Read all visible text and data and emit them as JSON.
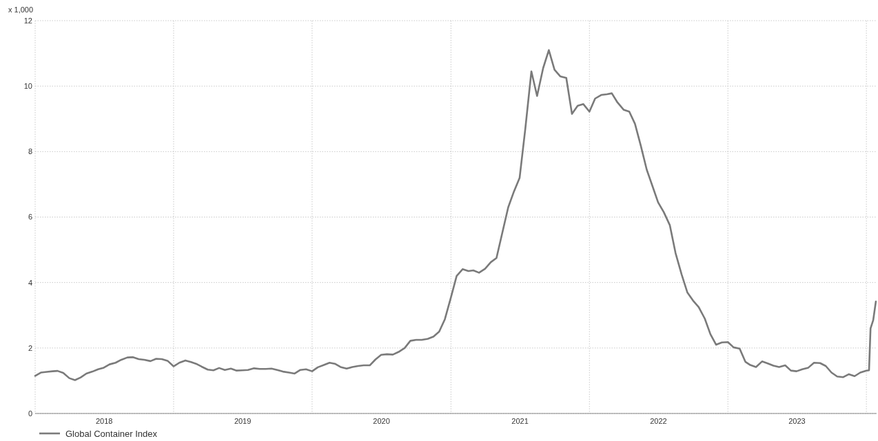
{
  "chart_data": {
    "type": "line",
    "ylabel": "x 1,000",
    "x": [
      "2018-01-01",
      "2018-01-16",
      "2018-02-01",
      "2018-02-16",
      "2018-03-01",
      "2018-03-16",
      "2018-04-01",
      "2018-04-16",
      "2018-05-01",
      "2018-05-16",
      "2018-06-01",
      "2018-06-16",
      "2018-07-01",
      "2018-07-16",
      "2018-08-01",
      "2018-08-16",
      "2018-09-01",
      "2018-09-16",
      "2018-10-01",
      "2018-10-16",
      "2018-11-01",
      "2018-11-16",
      "2018-12-01",
      "2018-12-16",
      "2019-01-01",
      "2019-01-16",
      "2019-02-01",
      "2019-02-16",
      "2019-03-01",
      "2019-03-16",
      "2019-04-01",
      "2019-04-16",
      "2019-05-01",
      "2019-05-16",
      "2019-06-01",
      "2019-06-16",
      "2019-07-01",
      "2019-07-16",
      "2019-08-01",
      "2019-08-16",
      "2019-09-01",
      "2019-09-16",
      "2019-10-01",
      "2019-10-16",
      "2019-11-01",
      "2019-11-16",
      "2019-12-01",
      "2019-12-16",
      "2020-01-01",
      "2020-01-16",
      "2020-02-01",
      "2020-02-16",
      "2020-03-01",
      "2020-03-16",
      "2020-04-01",
      "2020-04-16",
      "2020-05-01",
      "2020-05-16",
      "2020-06-01",
      "2020-06-16",
      "2020-07-01",
      "2020-07-16",
      "2020-08-01",
      "2020-08-16",
      "2020-09-01",
      "2020-09-16",
      "2020-10-01",
      "2020-10-16",
      "2020-11-01",
      "2020-11-16",
      "2020-12-01",
      "2020-12-16",
      "2021-01-01",
      "2021-01-16",
      "2021-02-01",
      "2021-02-16",
      "2021-03-01",
      "2021-03-16",
      "2021-04-01",
      "2021-04-16",
      "2021-05-01",
      "2021-05-16",
      "2021-06-01",
      "2021-06-16",
      "2021-07-01",
      "2021-07-16",
      "2021-08-01",
      "2021-08-16",
      "2021-09-01",
      "2021-09-16",
      "2021-10-01",
      "2021-10-16",
      "2021-11-01",
      "2021-11-16",
      "2021-12-01",
      "2021-12-16",
      "2022-01-01",
      "2022-01-16",
      "2022-02-01",
      "2022-02-16",
      "2022-03-01",
      "2022-03-16",
      "2022-04-01",
      "2022-04-16",
      "2022-05-01",
      "2022-05-16",
      "2022-06-01",
      "2022-06-16",
      "2022-07-01",
      "2022-07-16",
      "2022-08-01",
      "2022-08-16",
      "2022-09-01",
      "2022-09-16",
      "2022-10-01",
      "2022-10-16",
      "2022-11-01",
      "2022-11-16",
      "2022-12-01",
      "2022-12-16",
      "2023-01-01",
      "2023-01-16",
      "2023-02-01",
      "2023-02-16",
      "2023-03-01",
      "2023-03-16",
      "2023-04-01",
      "2023-04-16",
      "2023-05-01",
      "2023-05-16",
      "2023-06-01",
      "2023-06-16",
      "2023-07-01",
      "2023-07-16",
      "2023-08-01",
      "2023-08-16",
      "2023-09-01",
      "2023-09-16",
      "2023-10-01",
      "2023-10-16",
      "2023-11-01",
      "2023-11-16",
      "2023-12-01",
      "2023-12-16",
      "2024-01-01",
      "2024-01-08",
      "2024-01-12",
      "2024-01-19",
      "2024-01-26"
    ],
    "series": [
      {
        "name": "Global Container Index",
        "color": "#7a7a7a",
        "values": [
          1.15,
          1.25,
          1.27,
          1.29,
          1.3,
          1.24,
          1.08,
          1.02,
          1.1,
          1.22,
          1.28,
          1.35,
          1.4,
          1.5,
          1.55,
          1.64,
          1.71,
          1.72,
          1.66,
          1.64,
          1.6,
          1.67,
          1.66,
          1.61,
          1.44,
          1.55,
          1.62,
          1.57,
          1.52,
          1.43,
          1.34,
          1.32,
          1.39,
          1.33,
          1.37,
          1.31,
          1.32,
          1.33,
          1.38,
          1.36,
          1.36,
          1.37,
          1.33,
          1.28,
          1.25,
          1.22,
          1.33,
          1.35,
          1.29,
          1.41,
          1.48,
          1.55,
          1.52,
          1.42,
          1.37,
          1.42,
          1.45,
          1.47,
          1.47,
          1.65,
          1.79,
          1.81,
          1.8,
          1.88,
          2.0,
          2.22,
          2.25,
          2.25,
          2.28,
          2.35,
          2.5,
          2.88,
          3.55,
          4.2,
          4.41,
          4.35,
          4.37,
          4.3,
          4.42,
          4.62,
          4.75,
          5.5,
          6.3,
          6.78,
          7.2,
          8.7,
          10.45,
          9.7,
          10.55,
          11.1,
          10.5,
          10.3,
          10.25,
          9.15,
          9.4,
          9.45,
          9.22,
          9.62,
          9.73,
          9.75,
          9.78,
          9.5,
          9.28,
          9.22,
          8.85,
          8.2,
          7.45,
          6.95,
          6.45,
          6.15,
          5.75,
          4.9,
          4.25,
          3.7,
          3.45,
          3.25,
          2.9,
          2.42,
          2.1,
          2.17,
          2.18,
          2.02,
          1.98,
          1.58,
          1.48,
          1.42,
          1.59,
          1.53,
          1.46,
          1.42,
          1.47,
          1.31,
          1.29,
          1.35,
          1.4,
          1.55,
          1.54,
          1.45,
          1.25,
          1.13,
          1.11,
          1.2,
          1.14,
          1.25,
          1.31,
          1.32,
          2.6,
          2.85,
          3.42
        ]
      }
    ],
    "xlim": [
      "2018-01-01",
      "2024-01-28"
    ],
    "xticks": [
      {
        "value": "2018-01-01",
        "label": null
      },
      {
        "value": "2018-07-02",
        "label": "2018"
      },
      {
        "value": "2019-01-01",
        "label": null
      },
      {
        "value": "2019-07-02",
        "label": "2019"
      },
      {
        "value": "2020-01-01",
        "label": null
      },
      {
        "value": "2020-07-02",
        "label": "2020"
      },
      {
        "value": "2021-01-01",
        "label": null
      },
      {
        "value": "2021-07-02",
        "label": "2021"
      },
      {
        "value": "2022-01-01",
        "label": null
      },
      {
        "value": "2022-07-02",
        "label": "2022"
      },
      {
        "value": "2023-01-01",
        "label": null
      },
      {
        "value": "2023-07-02",
        "label": "2023"
      },
      {
        "value": "2024-01-01",
        "label": null
      }
    ],
    "ylim": [
      0,
      12
    ],
    "yticks": [
      0,
      2,
      4,
      6,
      8,
      10,
      12
    ],
    "grid": true,
    "legend": "bottom left",
    "marker": "none",
    "line_style": "solid"
  }
}
